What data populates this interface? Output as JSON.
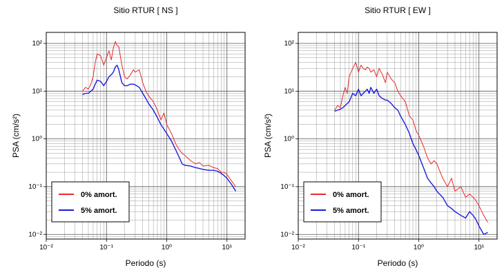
{
  "chart_data": [
    {
      "type": "line",
      "title": "Sitio RTUR [ NS ]",
      "x_label": "Periodo (s)",
      "y_label": "PSA (cm/s²)",
      "log_x": true,
      "log_y": true,
      "grid": true,
      "legend": "lower left",
      "xlim": [
        0.01,
        20
      ],
      "ylim": [
        0.008,
        170
      ],
      "xticks": [
        {
          "value": 0.01,
          "label": "10⁻²"
        },
        {
          "value": 0.1,
          "label": "10⁻¹"
        },
        {
          "value": 1,
          "label": "10⁰"
        },
        {
          "value": 10,
          "label": "10¹"
        }
      ],
      "yticks": [
        {
          "value": 0.01,
          "label": "10⁻²"
        },
        {
          "value": 0.1,
          "label": "10⁻¹"
        },
        {
          "value": 1,
          "label": "10⁰"
        },
        {
          "value": 10,
          "label": "10¹"
        },
        {
          "value": 100,
          "label": "10²"
        }
      ],
      "xminorticks": [
        0.02,
        0.03,
        0.04,
        0.05,
        0.06,
        0.07,
        0.08,
        0.09,
        0.2,
        0.3,
        0.4,
        0.5,
        0.6,
        0.7,
        0.8,
        0.9,
        2,
        3,
        4,
        5,
        6,
        7,
        8,
        9
      ],
      "yminorticks": [
        0.009,
        0.02,
        0.03,
        0.04,
        0.05,
        0.06,
        0.07,
        0.08,
        0.09,
        0.2,
        0.3,
        0.4,
        0.5,
        0.6,
        0.7,
        0.8,
        0.9,
        2,
        3,
        4,
        5,
        6,
        7,
        8,
        9,
        20,
        30,
        40,
        50,
        60,
        70,
        80,
        90
      ],
      "x": [
        0.04,
        0.045,
        0.05,
        0.055,
        0.06,
        0.065,
        0.07,
        0.08,
        0.09,
        0.1,
        0.11,
        0.12,
        0.13,
        0.14,
        0.15,
        0.16,
        0.18,
        0.2,
        0.22,
        0.25,
        0.28,
        0.3,
        0.35,
        0.4,
        0.45,
        0.5,
        0.6,
        0.7,
        0.8,
        0.9,
        1,
        1.2,
        1.4,
        1.6,
        1.8,
        2,
        2.5,
        3,
        3.5,
        4,
        5,
        6,
        7,
        8,
        9,
        10,
        12,
        14
      ],
      "series": [
        {
          "name": "0% amort.",
          "color": "#e8282a",
          "values": [
            10,
            12,
            11,
            14,
            20,
            40,
            60,
            55,
            35,
            50,
            70,
            45,
            80,
            110,
            90,
            85,
            35,
            20,
            18,
            22,
            28,
            25,
            28,
            15,
            10,
            8,
            6,
            4,
            2.5,
            3.5,
            2,
            1.3,
            0.8,
            0.6,
            0.5,
            0.45,
            0.35,
            0.3,
            0.32,
            0.27,
            0.28,
            0.25,
            0.24,
            0.2,
            0.2,
            0.18,
            0.13,
            0.1
          ]
        },
        {
          "name": "5% amort.",
          "color": "#1a1adc",
          "values": [
            8.5,
            9,
            9,
            10,
            11,
            14,
            17,
            16,
            13,
            16,
            20,
            22,
            25,
            32,
            35,
            28,
            15,
            13,
            13,
            14,
            14,
            13.5,
            12,
            9,
            7,
            5.5,
            4,
            2.8,
            2,
            1.6,
            1.3,
            0.9,
            0.6,
            0.42,
            0.3,
            0.28,
            0.27,
            0.25,
            0.24,
            0.23,
            0.22,
            0.22,
            0.21,
            0.19,
            0.17,
            0.15,
            0.11,
            0.08
          ]
        }
      ]
    },
    {
      "type": "line",
      "title": "Sitio RTUR [ EW ]",
      "x_label": "Periodo (s)",
      "y_label": "PSA (cm/s²)",
      "log_x": true,
      "log_y": true,
      "grid": true,
      "legend": "lower left",
      "xlim": [
        0.01,
        20
      ],
      "ylim": [
        0.008,
        170
      ],
      "xticks": [
        {
          "value": 0.01,
          "label": "10⁻²"
        },
        {
          "value": 0.1,
          "label": "10⁻¹"
        },
        {
          "value": 1,
          "label": "10⁰"
        },
        {
          "value": 10,
          "label": "10¹"
        }
      ],
      "yticks": [
        {
          "value": 0.01,
          "label": "10⁻²"
        },
        {
          "value": 0.1,
          "label": "10⁻¹"
        },
        {
          "value": 1,
          "label": "10⁰"
        },
        {
          "value": 10,
          "label": "10¹"
        },
        {
          "value": 100,
          "label": "10²"
        }
      ],
      "xminorticks": [
        0.02,
        0.03,
        0.04,
        0.05,
        0.06,
        0.07,
        0.08,
        0.09,
        0.2,
        0.3,
        0.4,
        0.5,
        0.6,
        0.7,
        0.8,
        0.9,
        2,
        3,
        4,
        5,
        6,
        7,
        8,
        9
      ],
      "yminorticks": [
        0.009,
        0.02,
        0.03,
        0.04,
        0.05,
        0.06,
        0.07,
        0.08,
        0.09,
        0.2,
        0.3,
        0.4,
        0.5,
        0.6,
        0.7,
        0.8,
        0.9,
        2,
        3,
        4,
        5,
        6,
        7,
        8,
        9,
        20,
        30,
        40,
        50,
        60,
        70,
        80,
        90
      ],
      "x": [
        0.04,
        0.045,
        0.05,
        0.055,
        0.06,
        0.065,
        0.07,
        0.08,
        0.09,
        0.1,
        0.11,
        0.12,
        0.13,
        0.14,
        0.15,
        0.16,
        0.18,
        0.2,
        0.22,
        0.25,
        0.28,
        0.3,
        0.35,
        0.4,
        0.45,
        0.5,
        0.6,
        0.7,
        0.8,
        0.9,
        1,
        1.2,
        1.4,
        1.6,
        1.8,
        2,
        2.5,
        3,
        3.5,
        4,
        5,
        6,
        7,
        8,
        9,
        10,
        12,
        14
      ],
      "series": [
        {
          "name": "0% amort.",
          "color": "#e8282a",
          "values": [
            4,
            5,
            4.5,
            8,
            12,
            9,
            20,
            30,
            40,
            25,
            35,
            30,
            28,
            32,
            30,
            25,
            28,
            20,
            30,
            22,
            15,
            25,
            18,
            15,
            10,
            8,
            6,
            3,
            2.5,
            1.5,
            1.2,
            0.7,
            0.4,
            0.3,
            0.35,
            0.3,
            0.15,
            0.1,
            0.15,
            0.08,
            0.1,
            0.06,
            0.07,
            0.06,
            0.05,
            0.04,
            0.025,
            0.018
          ]
        },
        {
          "name": "5% amort.",
          "color": "#1a1adc",
          "values": [
            3.8,
            4,
            4.2,
            4.5,
            5,
            5.5,
            6,
            9,
            8,
            11,
            8,
            9,
            10,
            11,
            9,
            12,
            9,
            11,
            8,
            7,
            6.5,
            6.5,
            5.5,
            4.5,
            4,
            3,
            2,
            1.3,
            0.8,
            0.6,
            0.45,
            0.25,
            0.15,
            0.12,
            0.1,
            0.08,
            0.06,
            0.04,
            0.035,
            0.03,
            0.025,
            0.022,
            0.03,
            0.025,
            0.02,
            0.015,
            0.01,
            0.011
          ]
        }
      ]
    }
  ]
}
